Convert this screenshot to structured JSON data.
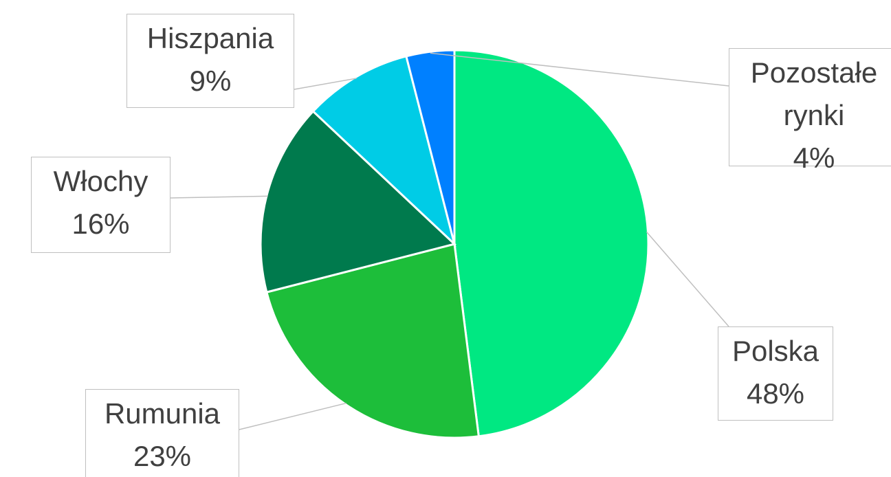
{
  "chart_data": {
    "type": "pie",
    "categories": [
      "Polska",
      "Rumunia",
      "Włochy",
      "Hiszpania",
      "Pozostałe rynki"
    ],
    "values": [
      48,
      23,
      16,
      9,
      4
    ],
    "value_labels": [
      "48%",
      "23%",
      "16%",
      "9%",
      "4%"
    ],
    "colors": [
      "#00e882",
      "#1dbe3a",
      "#007a4d",
      "#00cce6",
      "#0080ff"
    ]
  }
}
